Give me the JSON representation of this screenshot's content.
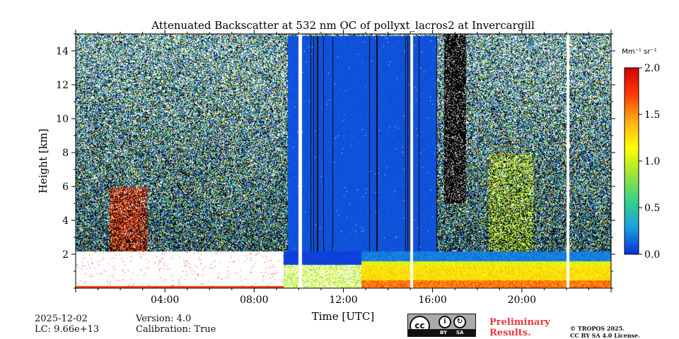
{
  "chart_data": {
    "type": "heatmap",
    "title": "Attenuated Backscatter at 532 nm OC of pollyxt_lacros2 at Invercargill",
    "xlabel": "Time [UTC]",
    "ylabel": "Height [km]",
    "x_ticks": [
      "04:00",
      "08:00",
      "12:00",
      "16:00",
      "20:00"
    ],
    "x_tick_hours": [
      4,
      8,
      12,
      16,
      20
    ],
    "xlim_hours": [
      0,
      24
    ],
    "y_ticks": [
      "2",
      "4",
      "6",
      "8",
      "10",
      "12",
      "14"
    ],
    "y_tick_values": [
      2,
      4,
      6,
      8,
      10,
      12,
      14
    ],
    "ylim_km": [
      0,
      15
    ],
    "colorbar": {
      "label": "Mm⁻¹ sr⁻¹",
      "ticks": [
        "0.0",
        "0.5",
        "1.0",
        "1.5",
        "2.0"
      ],
      "range": [
        0,
        2
      ],
      "colors": [
        "#0b2fd8",
        "#1a9fe0",
        "#35d28a",
        "#9be43a",
        "#ffff00",
        "#ffae17",
        "#ff3a06",
        "#d10000"
      ]
    },
    "features": {
      "cloud_top_km": 2.2,
      "blue_region_hours": [
        9.5,
        16.2
      ],
      "missing_profiles_hours": [
        10.05,
        15.05,
        22.05
      ],
      "dense_aerosol_layer_km": [
        0.2,
        1.3
      ]
    }
  },
  "meta": {
    "date": "2025-12-02",
    "lc": "LC: 9.66e+13",
    "version": "Version: 4.0",
    "calibration": "Calibration: True"
  },
  "notices": {
    "preliminary_line1": "Preliminary",
    "preliminary_line2": "Results.",
    "copyright_line1": "© TROPOS 2025.",
    "copyright_line2": "CC BY SA 4.0 License.",
    "cc_badge": "cc",
    "cc_by": "BY",
    "cc_sa": "SA"
  }
}
